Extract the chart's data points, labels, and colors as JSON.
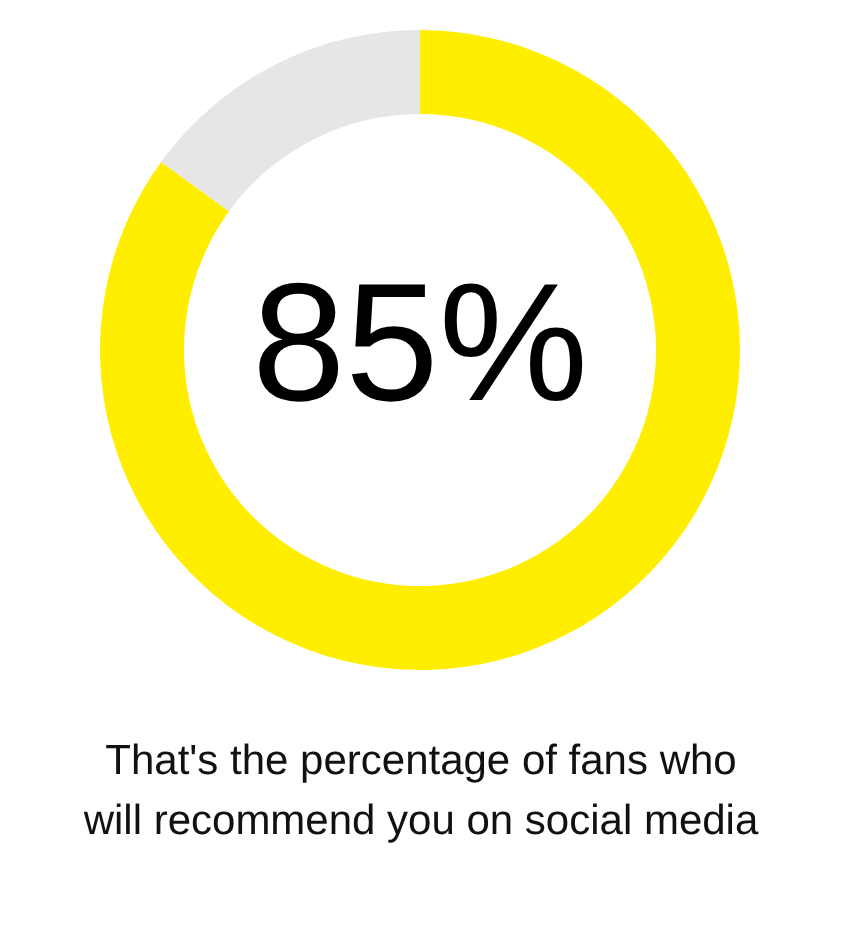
{
  "chart_data": {
    "type": "donut",
    "categories": [
      null,
      null
    ],
    "values": [
      85,
      15
    ],
    "colors": [
      "#ffee00",
      "#e6e6e6"
    ],
    "value_labels": [
      "85%",
      null
    ],
    "annotations": [
      "That's the percentage of fans who will recommend you on social media"
    ]
  }
}
